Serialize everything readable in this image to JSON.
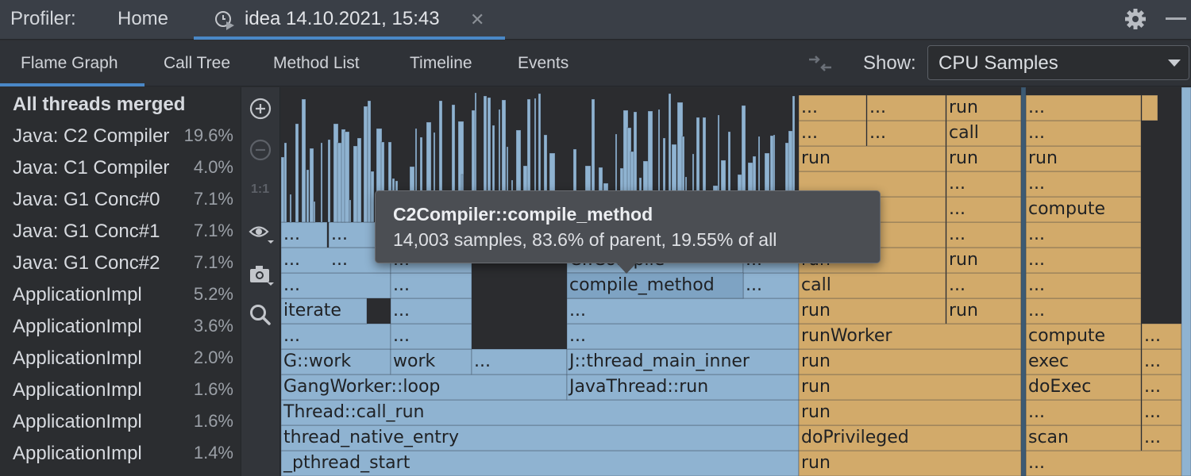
{
  "app": {
    "title": "Profiler:",
    "home_tab": "Home"
  },
  "session_tab": {
    "title": "idea 14.10.2021, 15:43",
    "close_glyph": "✕"
  },
  "view_tabs": [
    "Flame Graph",
    "Call Tree",
    "Method List",
    "Timeline",
    "Events"
  ],
  "active_view": "Flame Graph",
  "show": {
    "label": "Show:",
    "value": "CPU Samples"
  },
  "threads": [
    {
      "name": "All threads merged",
      "percent": ""
    },
    {
      "name": "Java: C2 Compiler",
      "percent": "19.6%"
    },
    {
      "name": "Java: C1 Compiler",
      "percent": "4.0%"
    },
    {
      "name": "Java: G1 Conc#0",
      "percent": "7.1%"
    },
    {
      "name": "Java: G1 Conc#1",
      "percent": "7.1%"
    },
    {
      "name": "Java: G1 Conc#2",
      "percent": "7.1%"
    },
    {
      "name": "ApplicationImpl",
      "percent": "5.2%"
    },
    {
      "name": "ApplicationImpl",
      "percent": "3.6%"
    },
    {
      "name": "ApplicationImpl",
      "percent": "2.0%"
    },
    {
      "name": "ApplicationImpl",
      "percent": "1.6%"
    },
    {
      "name": "ApplicationImpl",
      "percent": "1.6%"
    },
    {
      "name": "ApplicationImpl",
      "percent": "1.4%"
    }
  ],
  "tools": [
    "zoom-in-icon",
    "zoom-out-icon",
    "actual-size-icon",
    "eye-icon",
    "camera-icon",
    "search-icon"
  ],
  "tools_reset_label": "1:1",
  "tooltip": {
    "title": "C2Compiler::compile_method",
    "detail": "14,003 samples, 83.6% of parent, 19.55% of all"
  },
  "colors": {
    "native_frame": "#8fb3d1",
    "java_frame": "#d2aa6a",
    "background": "#2b2c2f",
    "accent": "#4a88c7"
  },
  "flame_labels": [
    "...",
    "...",
    "...",
    "...",
    "...",
    "...",
    "...",
    "...",
    "...",
    "...",
    "C::Compile",
    "compile_method",
    "iterate",
    "G::work",
    "work",
    "J::thread_main_inner",
    "GangWorker::loop",
    "JavaThread::run",
    "Thread::call_run",
    "thread_native_entry",
    "_pthread_start",
    "run",
    "call",
    "runWorker",
    "doPrivileged",
    "compute",
    "exec",
    "doExec",
    "scan"
  ]
}
